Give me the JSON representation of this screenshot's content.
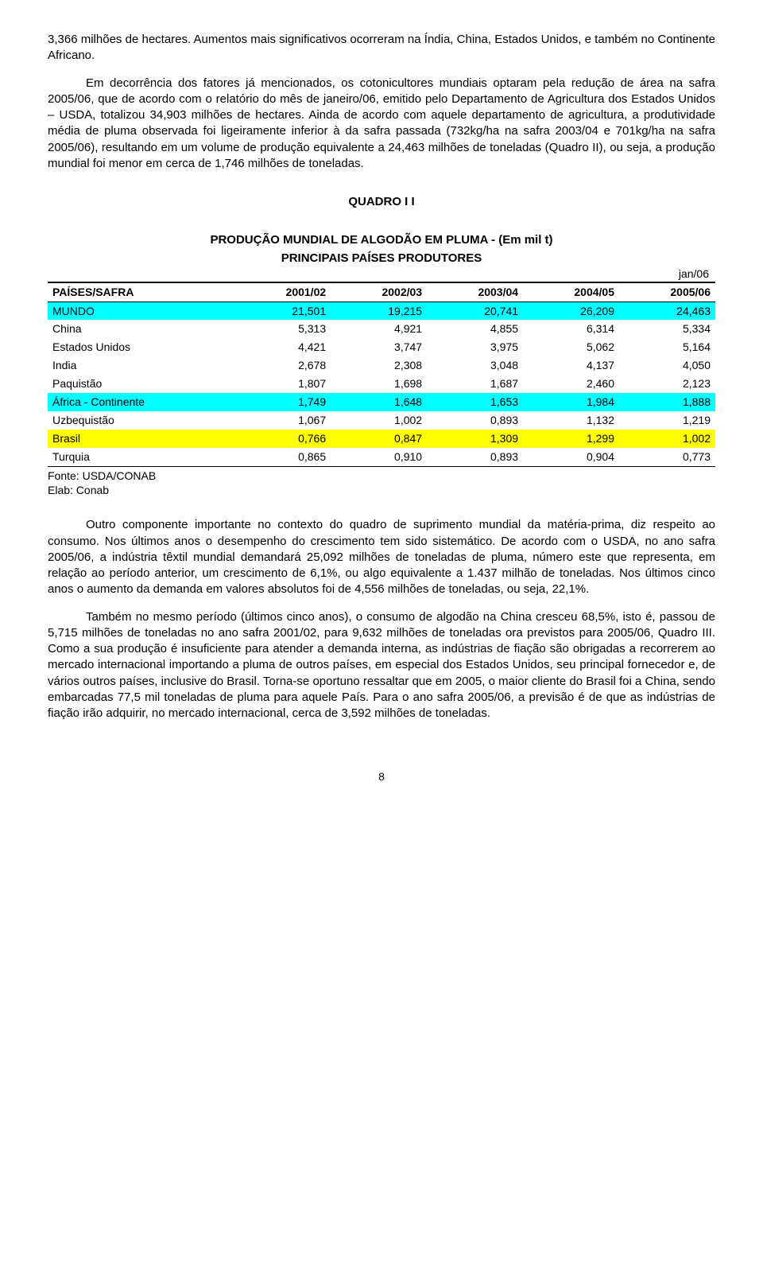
{
  "para1": "3,366 milhões de hectares. Aumentos mais significativos ocorreram na Índia, China, Estados Unidos, e também no Continente Africano.",
  "para2": "Em decorrência dos fatores já mencionados, os cotonicultores mundiais optaram pela redução de área na safra 2005/06, que de acordo com o relatório do mês de janeiro/06, emitido pelo Departamento de Agricultura dos Estados Unidos – USDA, totalizou 34,903 milhões de hectares. Ainda de acordo com aquele departamento de agricultura, a produtividade média de pluma observada foi ligeiramente inferior à da safra passada (732kg/ha na safra 2003/04 e 701kg/ha na safra 2005/06), resultando em um volume de produção equivalente a 24,463 milhões de toneladas (Quadro II), ou seja, a produção mundial foi menor em cerca de 1,746 milhões de toneladas.",
  "table": {
    "title_line1": "QUADRO  I I",
    "title_line2": "PRODUÇÃO MUNDIAL DE ALGODÃO EM PLUMA  - (Em mil t)",
    "title_line3": "PRINCIPAIS PAÍSES PRODUTORES",
    "date_label": "jan/06",
    "header": [
      "PAÍSES/SAFRA",
      "2001/02",
      "2002/03",
      "2003/04",
      "2004/05",
      "2005/06"
    ],
    "rows": [
      {
        "hl": "cyan",
        "c": [
          "MUNDO",
          "21,501",
          "19,215",
          "20,741",
          "26,209",
          "24,463"
        ]
      },
      {
        "hl": "",
        "c": [
          "China",
          "5,313",
          "4,921",
          "4,855",
          "6,314",
          "5,334"
        ]
      },
      {
        "hl": "",
        "c": [
          "Estados Unidos",
          "4,421",
          "3,747",
          "3,975",
          "5,062",
          "5,164"
        ]
      },
      {
        "hl": "",
        "c": [
          "India",
          "2,678",
          "2,308",
          "3,048",
          "4,137",
          "4,050"
        ]
      },
      {
        "hl": "",
        "c": [
          "Paquistão",
          "1,807",
          "1,698",
          "1,687",
          "2,460",
          "2,123"
        ]
      },
      {
        "hl": "cyan",
        "c": [
          "África - Continente",
          "1,749",
          "1,648",
          "1,653",
          "1,984",
          "1,888"
        ]
      },
      {
        "hl": "",
        "c": [
          "Uzbequistão",
          "1,067",
          "1,002",
          "0,893",
          "1,132",
          "1,219"
        ]
      },
      {
        "hl": "yellow",
        "c": [
          "Brasil",
          "0,766",
          "0,847",
          "1,309",
          "1,299",
          "1,002"
        ]
      },
      {
        "hl": "",
        "c": [
          "Turquia",
          "0,865",
          "0,910",
          "0,893",
          "0,904",
          "0,773"
        ]
      }
    ],
    "source1": "Fonte: USDA/CONAB",
    "source2": "Elab: Conab"
  },
  "para3": "Outro componente importante no contexto do quadro de suprimento mundial da matéria-prima, diz respeito ao consumo. Nos últimos anos o desempenho do crescimento tem sido sistemático. De acordo com o USDA, no ano safra 2005/06, a indústria têxtil mundial demandará 25,092 milhões de toneladas de pluma, número este que representa, em relação ao período anterior, um crescimento de 6,1%, ou algo equivalente a 1.437 milhão de toneladas. Nos últimos cinco anos o aumento da demanda em valores absolutos foi de 4,556 milhões de toneladas, ou seja, 22,1%.",
  "para4": "Também no mesmo período (últimos cinco anos), o consumo de algodão na China cresceu 68,5%, isto é, passou de 5,715 milhões de toneladas no ano safra 2001/02, para 9,632 milhões de toneladas ora previstos para 2005/06, Quadro III. Como a sua produção é insuficiente para atender a demanda interna, as indústrias de fiação são obrigadas a recorrerem ao mercado internacional importando a pluma de outros países, em especial dos Estados Unidos, seu principal fornecedor e, de vários outros países, inclusive do Brasil. Torna-se oportuno ressaltar que em 2005, o maior cliente do Brasil foi a China, sendo embarcadas 77,5 mil toneladas de pluma para aquele País.  Para o ano safra 2005/06, a previsão é de que as indústrias de fiação irão adquirir, no mercado internacional, cerca de 3,592 milhões de toneladas.",
  "page_number": "8"
}
